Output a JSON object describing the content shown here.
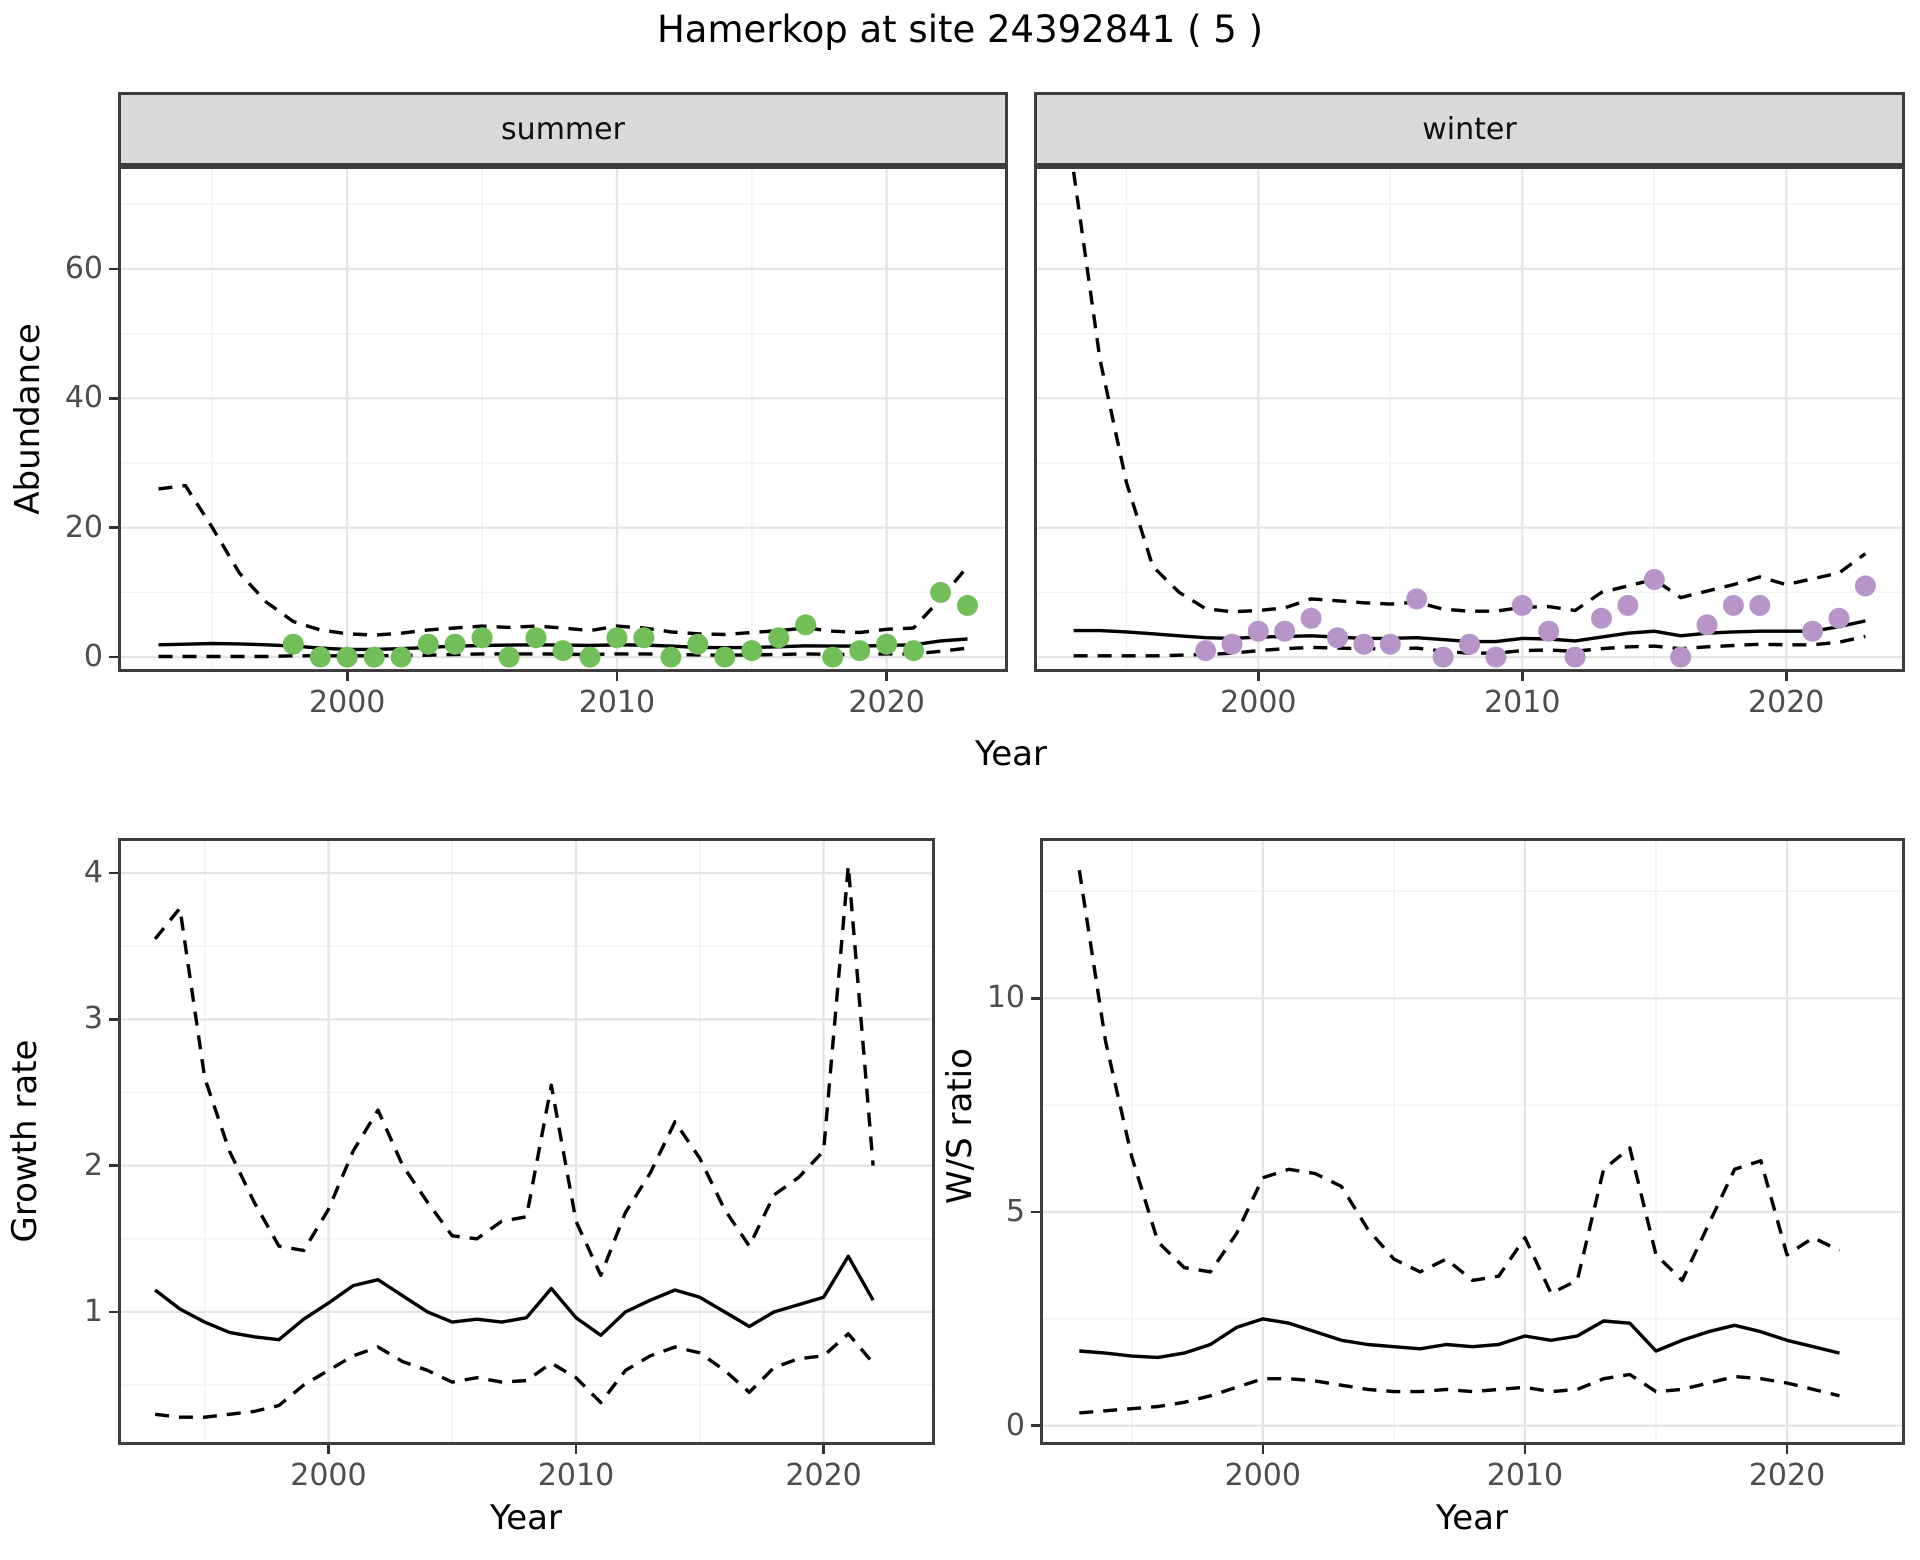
{
  "title": "Hamerkop at site 24392841 ( 5 )",
  "colors": {
    "summer_points": "#72BE59",
    "winter_points": "#B795C8",
    "line": "#000000",
    "strip_bg": "#DADADA",
    "panel_border": "#3D3D3D",
    "grid_major": "#E4E4E4",
    "grid_minor": "#F2F2F2",
    "tick_text": "#4D4D4D"
  },
  "chart_data": [
    {
      "type": "scatter",
      "facet": "summer",
      "xlabel": "Year",
      "ylabel": "Abundance",
      "xlim": [
        1991.5,
        2024.5
      ],
      "ylim": [
        -2.3,
        75.9
      ],
      "xticks": [
        2000,
        2010,
        2020
      ],
      "yticks": [
        0,
        20,
        40,
        60
      ],
      "minor_xticks": [
        1995,
        2005,
        2015
      ],
      "minor_yticks": [
        10,
        30,
        50,
        70
      ],
      "point_color": "#72BE59",
      "fit_years": [
        1993,
        1994,
        1995,
        1996,
        1997,
        1998,
        1999,
        2000,
        2001,
        2002,
        2003,
        2004,
        2005,
        2006,
        2007,
        2008,
        2009,
        2010,
        2011,
        2012,
        2013,
        2014,
        2015,
        2016,
        2017,
        2018,
        2019,
        2020,
        2021,
        2022,
        2023
      ],
      "fit": [
        1.9,
        2.0,
        2.1,
        2.05,
        1.9,
        1.7,
        1.4,
        1.2,
        1.2,
        1.3,
        1.5,
        1.7,
        1.8,
        1.85,
        1.9,
        1.85,
        1.8,
        1.9,
        1.85,
        1.7,
        1.5,
        1.45,
        1.5,
        1.6,
        1.75,
        1.7,
        1.7,
        1.8,
        1.9,
        2.5,
        2.8
      ],
      "ci_upper": [
        26,
        26.5,
        20,
        13,
        8.5,
        5.5,
        4.2,
        3.6,
        3.4,
        3.7,
        4.2,
        4.5,
        4.8,
        4.6,
        4.8,
        4.5,
        4.1,
        4.8,
        4.5,
        3.9,
        3.6,
        3.5,
        3.8,
        4.1,
        4.5,
        4.0,
        3.8,
        4.3,
        4.5,
        9.0,
        14.0
      ],
      "ci_lower": [
        0.1,
        0.1,
        0.1,
        0.1,
        0.1,
        0.2,
        0.2,
        0.2,
        0.2,
        0.25,
        0.3,
        0.4,
        0.5,
        0.5,
        0.5,
        0.45,
        0.4,
        0.5,
        0.5,
        0.4,
        0.35,
        0.3,
        0.35,
        0.4,
        0.5,
        0.4,
        0.4,
        0.5,
        0.5,
        0.9,
        1.4
      ],
      "point_years": [
        1998,
        1999,
        2000,
        2001,
        2002,
        2003,
        2004,
        2005,
        2006,
        2007,
        2008,
        2009,
        2010,
        2011,
        2012,
        2013,
        2014,
        2015,
        2016,
        2017,
        2018,
        2019,
        2020,
        2021,
        2022,
        2023
      ],
      "point_values": [
        2,
        0,
        0,
        0,
        0,
        2,
        2,
        3,
        0,
        3,
        1,
        0,
        3,
        3,
        0,
        2,
        0,
        1,
        3,
        5,
        0,
        1,
        2,
        1,
        10,
        8
      ]
    },
    {
      "type": "scatter",
      "facet": "winter",
      "xlabel": "Year",
      "ylabel": "Abundance",
      "xlim": [
        1991.5,
        2024.5
      ],
      "ylim": [
        -2.3,
        75.9
      ],
      "xticks": [
        2000,
        2010,
        2020
      ],
      "yticks": [
        0,
        20,
        40,
        60
      ],
      "minor_xticks": [
        1995,
        2005,
        2015
      ],
      "minor_yticks": [
        10,
        30,
        50,
        70
      ],
      "point_color": "#B795C8",
      "fit_years": [
        1993,
        1994,
        1995,
        1996,
        1997,
        1998,
        1999,
        2000,
        2001,
        2002,
        2003,
        2004,
        2005,
        2006,
        2007,
        2008,
        2009,
        2010,
        2011,
        2012,
        2013,
        2014,
        2015,
        2016,
        2017,
        2018,
        2019,
        2020,
        2021,
        2022,
        2023
      ],
      "fit": [
        4.1,
        4.1,
        3.9,
        3.6,
        3.3,
        3.0,
        2.9,
        3.1,
        3.2,
        3.3,
        3.1,
        2.9,
        2.9,
        3.0,
        2.7,
        2.4,
        2.4,
        2.9,
        2.8,
        2.5,
        3.1,
        3.7,
        4.0,
        3.3,
        3.7,
        3.9,
        4.0,
        4.0,
        4.0,
        4.7,
        5.6
      ],
      "ci_upper": [
        75,
        46,
        27,
        14,
        10,
        7.5,
        7.0,
        7.2,
        7.6,
        9.0,
        8.7,
        8.4,
        8.2,
        8.5,
        7.4,
        7.1,
        7.1,
        7.7,
        7.8,
        7.2,
        10.0,
        11.0,
        12.0,
        9.2,
        10.2,
        11.2,
        12.4,
        11.2,
        12.1,
        13.0,
        16.0
      ],
      "ci_lower": [
        0.2,
        0.2,
        0.2,
        0.2,
        0.3,
        0.4,
        0.6,
        1.0,
        1.3,
        1.5,
        1.4,
        1.3,
        1.3,
        1.4,
        0.9,
        0.6,
        0.6,
        1.0,
        1.1,
        0.9,
        1.3,
        1.6,
        1.7,
        1.3,
        1.6,
        1.8,
        2.0,
        1.9,
        1.9,
        2.3,
        3.2
      ],
      "point_years": [
        1998,
        1999,
        2000,
        2001,
        2002,
        2003,
        2004,
        2005,
        2006,
        2007,
        2008,
        2009,
        2010,
        2011,
        2012,
        2013,
        2014,
        2015,
        2016,
        2017,
        2018,
        2019,
        2021,
        2022,
        2023
      ],
      "point_values": [
        1,
        2,
        4,
        4,
        6,
        3,
        2,
        2,
        9,
        0,
        2,
        0,
        8,
        4,
        0,
        6,
        8,
        12,
        0,
        5,
        8,
        8,
        4,
        6,
        11
      ]
    },
    {
      "type": "line",
      "facet": null,
      "xlabel": "Year",
      "ylabel": "Growth rate",
      "xlim": [
        1991.5,
        2024.5
      ],
      "ylim": [
        0.09,
        4.24
      ],
      "xticks": [
        2000,
        2010,
        2020
      ],
      "yticks": [
        1,
        2,
        3,
        4
      ],
      "minor_xticks": [
        1995,
        2005,
        2015
      ],
      "minor_yticks": [
        0.5,
        1.5,
        2.5,
        3.5
      ],
      "fit_years": [
        1993,
        1994,
        1995,
        1996,
        1997,
        1998,
        1999,
        2000,
        2001,
        2002,
        2003,
        2004,
        2005,
        2006,
        2007,
        2008,
        2009,
        2010,
        2011,
        2012,
        2013,
        2014,
        2015,
        2016,
        2017,
        2018,
        2019,
        2020,
        2021,
        2022
      ],
      "fit": [
        1.15,
        1.02,
        0.93,
        0.86,
        0.83,
        0.81,
        0.95,
        1.06,
        1.18,
        1.22,
        1.11,
        1.0,
        0.93,
        0.95,
        0.93,
        0.96,
        1.16,
        0.96,
        0.84,
        1.0,
        1.08,
        1.15,
        1.1,
        1.0,
        0.9,
        1.0,
        1.05,
        1.1,
        1.38,
        1.08
      ],
      "ci_upper": [
        3.55,
        3.76,
        2.6,
        2.1,
        1.75,
        1.45,
        1.42,
        1.7,
        2.1,
        2.38,
        2.0,
        1.75,
        1.52,
        1.5,
        1.62,
        1.65,
        2.55,
        1.62,
        1.25,
        1.68,
        1.95,
        2.3,
        2.05,
        1.7,
        1.45,
        1.8,
        1.92,
        2.1,
        4.05,
        2.0
      ],
      "ci_lower": [
        0.3,
        0.28,
        0.28,
        0.3,
        0.32,
        0.36,
        0.5,
        0.6,
        0.7,
        0.76,
        0.66,
        0.6,
        0.52,
        0.55,
        0.52,
        0.53,
        0.65,
        0.55,
        0.38,
        0.6,
        0.7,
        0.76,
        0.72,
        0.6,
        0.45,
        0.62,
        0.68,
        0.7,
        0.85,
        0.65
      ]
    },
    {
      "type": "line",
      "facet": null,
      "xlabel": "Year",
      "ylabel": "W/S ratio",
      "xlim": [
        1991.5,
        2024.5
      ],
      "ylim": [
        -0.45,
        13.75
      ],
      "xticks": [
        2000,
        2010,
        2020
      ],
      "yticks": [
        0,
        5,
        10
      ],
      "minor_xticks": [
        1995,
        2005,
        2015
      ],
      "minor_yticks": [
        2.5,
        7.5,
        12.5
      ],
      "fit_years": [
        1993,
        1994,
        1995,
        1996,
        1997,
        1998,
        1999,
        2000,
        2001,
        2002,
        2003,
        2004,
        2005,
        2006,
        2007,
        2008,
        2009,
        2010,
        2011,
        2012,
        2013,
        2014,
        2015,
        2016,
        2017,
        2018,
        2019,
        2020,
        2021,
        2022
      ],
      "fit": [
        1.75,
        1.7,
        1.63,
        1.6,
        1.7,
        1.9,
        2.3,
        2.5,
        2.4,
        2.2,
        2.0,
        1.9,
        1.85,
        1.8,
        1.9,
        1.85,
        1.9,
        2.1,
        2.0,
        2.1,
        2.45,
        2.4,
        1.75,
        2.0,
        2.2,
        2.35,
        2.2,
        2.0,
        1.85,
        1.7
      ],
      "ci_upper": [
        13.0,
        9.0,
        6.3,
        4.3,
        3.7,
        3.6,
        4.5,
        5.8,
        6.0,
        5.9,
        5.6,
        4.6,
        3.9,
        3.6,
        3.9,
        3.4,
        3.5,
        4.4,
        3.1,
        3.4,
        6.0,
        6.5,
        4.0,
        3.4,
        4.7,
        6.0,
        6.2,
        4.0,
        4.4,
        4.1
      ],
      "ci_lower": [
        0.3,
        0.35,
        0.4,
        0.45,
        0.55,
        0.7,
        0.9,
        1.1,
        1.1,
        1.05,
        0.95,
        0.85,
        0.8,
        0.8,
        0.85,
        0.8,
        0.85,
        0.9,
        0.8,
        0.85,
        1.1,
        1.2,
        0.8,
        0.85,
        1.0,
        1.15,
        1.1,
        1.0,
        0.85,
        0.7
      ]
    }
  ]
}
